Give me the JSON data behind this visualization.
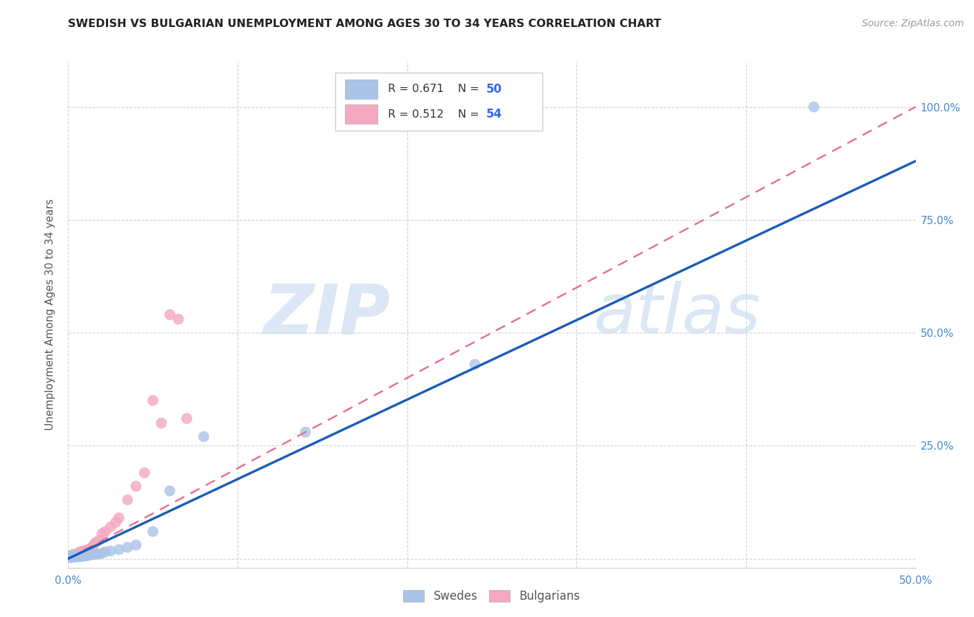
{
  "title": "SWEDISH VS BULGARIAN UNEMPLOYMENT AMONG AGES 30 TO 34 YEARS CORRELATION CHART",
  "source": "Source: ZipAtlas.com",
  "ylabel": "Unemployment Among Ages 30 to 34 years",
  "xlim": [
    0,
    0.5
  ],
  "ylim": [
    -0.02,
    1.1
  ],
  "xticks": [
    0.0,
    0.1,
    0.2,
    0.3,
    0.4,
    0.5
  ],
  "yticks": [
    0.0,
    0.25,
    0.5,
    0.75,
    1.0
  ],
  "xtick_labels": [
    "0.0%",
    "",
    "",
    "",
    "",
    "50.0%"
  ],
  "ytick_labels": [
    "",
    "25.0%",
    "50.0%",
    "75.0%",
    "100.0%"
  ],
  "background_color": "#ffffff",
  "grid_color": "#cccccc",
  "swedes_color": "#aac4e8",
  "bulgarians_color": "#f4a8c0",
  "swedes_line_color": "#1a5cb8",
  "bulgarians_dash_color": "#e87090",
  "watermark_zip": "ZIP",
  "watermark_atlas": "atlas",
  "legend_R_swedes": "R = 0.671",
  "legend_N_swedes": "50",
  "legend_R_bulgarians": "R = 0.512",
  "legend_N_bulgarians": "54",
  "swedes_x": [
    0.001,
    0.001,
    0.001,
    0.002,
    0.002,
    0.002,
    0.002,
    0.003,
    0.003,
    0.003,
    0.003,
    0.003,
    0.004,
    0.004,
    0.004,
    0.004,
    0.005,
    0.005,
    0.005,
    0.005,
    0.006,
    0.006,
    0.006,
    0.007,
    0.007,
    0.007,
    0.008,
    0.008,
    0.009,
    0.01,
    0.01,
    0.011,
    0.012,
    0.013,
    0.015,
    0.016,
    0.017,
    0.018,
    0.02,
    0.022,
    0.025,
    0.03,
    0.035,
    0.04,
    0.05,
    0.06,
    0.08,
    0.14,
    0.24,
    0.44
  ],
  "swedes_y": [
    0.003,
    0.004,
    0.004,
    0.003,
    0.004,
    0.005,
    0.005,
    0.004,
    0.004,
    0.005,
    0.005,
    0.006,
    0.004,
    0.005,
    0.005,
    0.006,
    0.004,
    0.005,
    0.005,
    0.006,
    0.005,
    0.005,
    0.006,
    0.005,
    0.006,
    0.006,
    0.005,
    0.006,
    0.006,
    0.006,
    0.007,
    0.007,
    0.007,
    0.008,
    0.009,
    0.01,
    0.01,
    0.01,
    0.012,
    0.015,
    0.017,
    0.02,
    0.025,
    0.03,
    0.06,
    0.15,
    0.27,
    0.28,
    0.43,
    1.0
  ],
  "bulgarians_x": [
    0.001,
    0.001,
    0.001,
    0.001,
    0.002,
    0.002,
    0.002,
    0.002,
    0.002,
    0.003,
    0.003,
    0.003,
    0.003,
    0.003,
    0.003,
    0.004,
    0.004,
    0.004,
    0.004,
    0.005,
    0.005,
    0.005,
    0.005,
    0.006,
    0.006,
    0.006,
    0.007,
    0.007,
    0.007,
    0.008,
    0.008,
    0.009,
    0.01,
    0.01,
    0.011,
    0.012,
    0.013,
    0.014,
    0.015,
    0.016,
    0.018,
    0.02,
    0.022,
    0.025,
    0.028,
    0.03,
    0.035,
    0.04,
    0.045,
    0.05,
    0.055,
    0.06,
    0.065,
    0.07
  ],
  "bulgarians_y": [
    0.003,
    0.004,
    0.005,
    0.006,
    0.004,
    0.005,
    0.005,
    0.006,
    0.007,
    0.005,
    0.005,
    0.006,
    0.007,
    0.008,
    0.009,
    0.005,
    0.006,
    0.007,
    0.008,
    0.006,
    0.007,
    0.008,
    0.01,
    0.007,
    0.008,
    0.012,
    0.008,
    0.01,
    0.015,
    0.01,
    0.016,
    0.015,
    0.012,
    0.018,
    0.018,
    0.02,
    0.022,
    0.025,
    0.03,
    0.035,
    0.04,
    0.055,
    0.06,
    0.07,
    0.08,
    0.09,
    0.13,
    0.16,
    0.19,
    0.35,
    0.3,
    0.54,
    0.53,
    0.31
  ],
  "blue_line_x": [
    0.0,
    0.5
  ],
  "blue_line_y": [
    0.0,
    0.88
  ],
  "pink_line_x": [
    0.0,
    0.07
  ],
  "pink_line_y": [
    0.0,
    0.2
  ]
}
